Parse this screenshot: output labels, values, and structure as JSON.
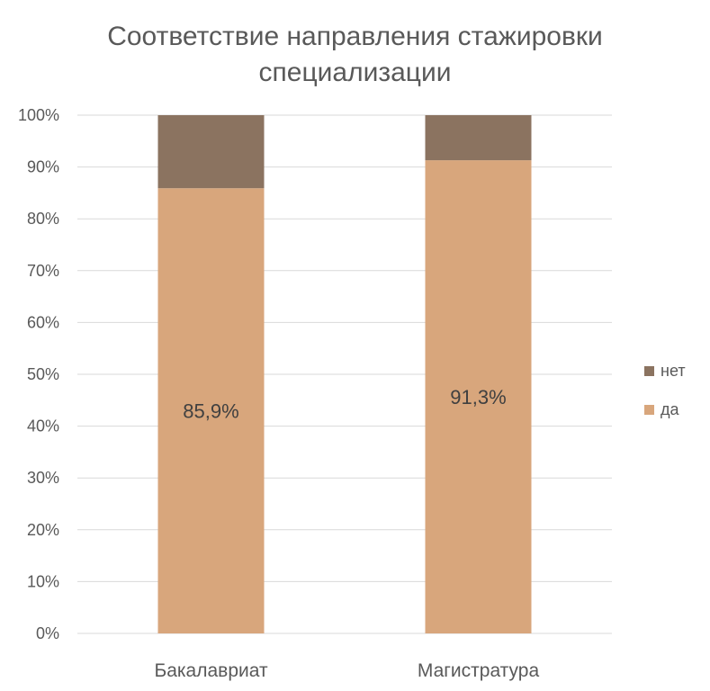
{
  "chart_data": {
    "type": "bar",
    "stacked": true,
    "percent_stacked": true,
    "title_lines": [
      "Соответствие направления стажировки",
      "специализации"
    ],
    "categories": [
      "Бакалавриат",
      "Магистратура"
    ],
    "series": [
      {
        "name": "да",
        "values": [
          85.9,
          91.3
        ],
        "color": "#D8A67C",
        "labels": [
          "85,9%",
          "91,3%"
        ]
      },
      {
        "name": "нет",
        "values": [
          14.1,
          8.7
        ],
        "color": "#8B7360"
      }
    ],
    "ylim": [
      0,
      100
    ],
    "yticks": [
      "0%",
      "10%",
      "20%",
      "30%",
      "40%",
      "50%",
      "60%",
      "70%",
      "80%",
      "90%",
      "100%"
    ],
    "legend_order": [
      "нет",
      "да"
    ],
    "legend_position": "right",
    "grid": true
  }
}
